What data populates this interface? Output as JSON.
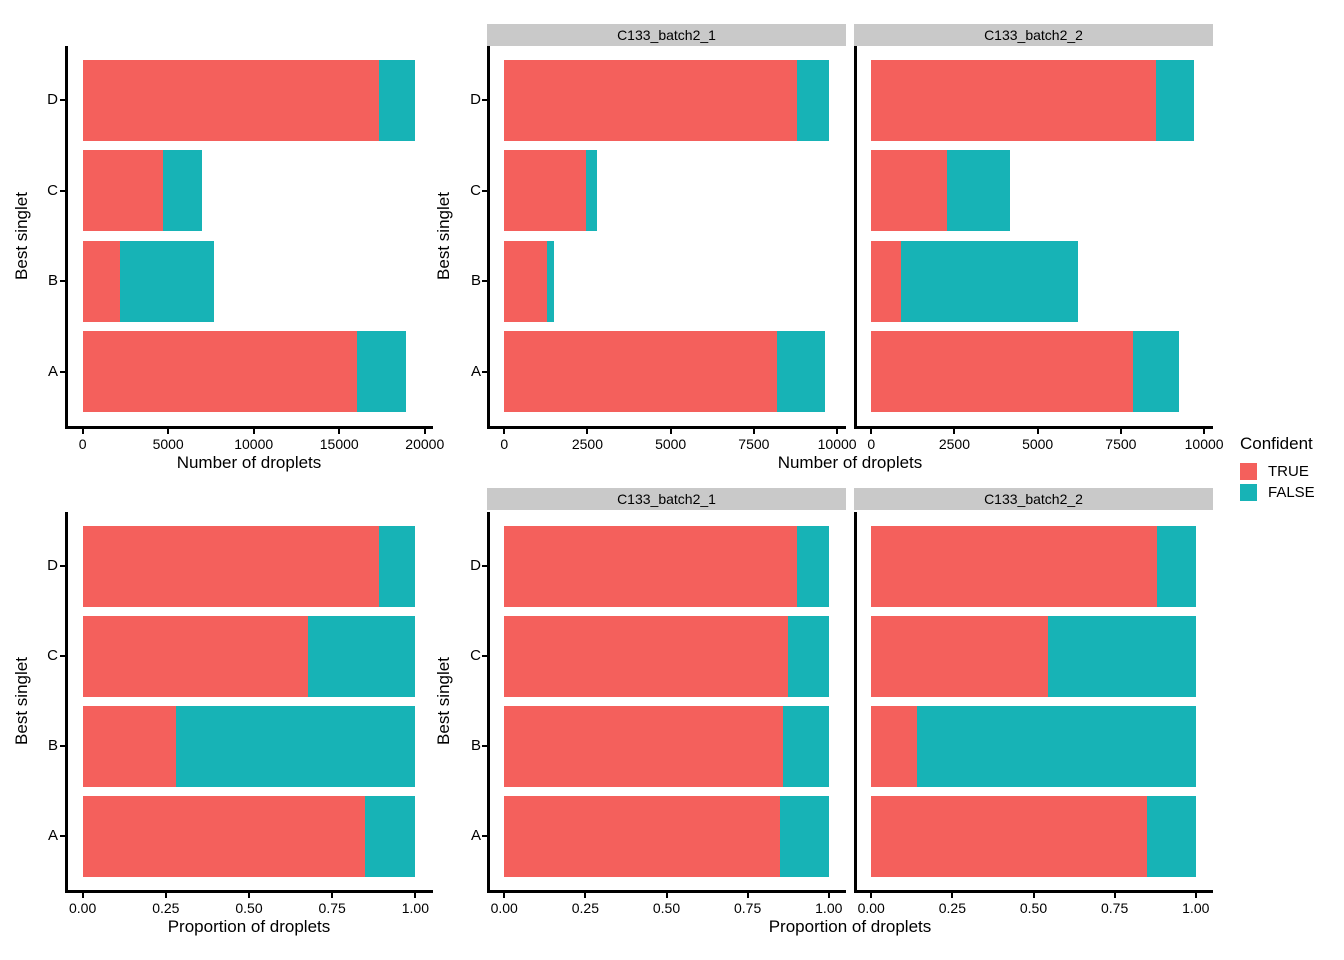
{
  "colors": {
    "TRUE": "#F4605C",
    "FALSE": "#17B3B6",
    "strip_bg": "#C9C9C9",
    "axis": "#000000",
    "text": "#000000"
  },
  "legend": {
    "title": "Confident",
    "entries": [
      {
        "label": "TRUE",
        "color": "#F4605C"
      },
      {
        "label": "FALSE",
        "color": "#17B3B6"
      }
    ]
  },
  "chart_data": [
    {
      "id": "counts_all",
      "type": "bar",
      "orientation": "horizontal",
      "stacked": true,
      "xlabel": "Number of droplets",
      "ylabel": "Best singlet",
      "categories": [
        "A",
        "B",
        "C",
        "D"
      ],
      "xlim": [
        -972.5,
        20422.5
      ],
      "xticks": [
        {
          "value": 0,
          "label": "0"
        },
        {
          "value": 5000,
          "label": "5000"
        },
        {
          "value": 10000,
          "label": "10000"
        },
        {
          "value": 15000,
          "label": "15000"
        },
        {
          "value": 20000,
          "label": "20000"
        }
      ],
      "panels": [
        {
          "strip": null,
          "series": [
            {
              "name": "TRUE",
              "values": [
                16050,
                2170,
                4720,
                17350
              ]
            },
            {
              "name": "FALSE",
              "values": [
                2850,
                5530,
                2240,
                2100
              ]
            }
          ]
        }
      ]
    },
    {
      "id": "counts_facets",
      "type": "bar",
      "orientation": "horizontal",
      "stacked": true,
      "xlabel": "Number of droplets",
      "ylabel": "Best singlet",
      "categories": [
        "A",
        "B",
        "C",
        "D"
      ],
      "xlim": [
        -487.5,
        10237.5
      ],
      "xticks": [
        {
          "value": 0,
          "label": "0"
        },
        {
          "value": 2500,
          "label": "2500"
        },
        {
          "value": 5000,
          "label": "5000"
        },
        {
          "value": 7500,
          "label": "7500"
        },
        {
          "value": 10000,
          "label": "10000"
        }
      ],
      "panels": [
        {
          "strip": "C133_batch2_1",
          "series": [
            {
              "name": "TRUE",
              "values": [
                8200,
                1290,
                2450,
                8800
              ]
            },
            {
              "name": "FALSE",
              "values": [
                1450,
                210,
                350,
                950
              ]
            }
          ]
        },
        {
          "strip": "C133_batch2_2",
          "series": [
            {
              "name": "TRUE",
              "values": [
                7850,
                880,
                2270,
                8550
              ]
            },
            {
              "name": "FALSE",
              "values": [
                1400,
                5320,
                1890,
                1150
              ]
            }
          ]
        }
      ]
    },
    {
      "id": "props_all",
      "type": "bar",
      "orientation": "horizontal",
      "stacked": true,
      "xlabel": "Proportion of droplets",
      "ylabel": "Best singlet",
      "categories": [
        "A",
        "B",
        "C",
        "D"
      ],
      "xlim": [
        -0.05,
        1.05
      ],
      "xticks": [
        {
          "value": 0,
          "label": "0.00"
        },
        {
          "value": 0.25,
          "label": "0.25"
        },
        {
          "value": 0.5,
          "label": "0.50"
        },
        {
          "value": 0.75,
          "label": "0.75"
        },
        {
          "value": 1,
          "label": "1.00"
        }
      ],
      "panels": [
        {
          "strip": null,
          "series": [
            {
              "name": "TRUE",
              "values": [
                0.849,
                0.282,
                0.678,
                0.892
              ]
            },
            {
              "name": "FALSE",
              "values": [
                0.151,
                0.718,
                0.322,
                0.108
              ]
            }
          ]
        }
      ]
    },
    {
      "id": "props_facets",
      "type": "bar",
      "orientation": "horizontal",
      "stacked": true,
      "xlabel": "Proportion of droplets",
      "ylabel": "Best singlet",
      "categories": [
        "A",
        "B",
        "C",
        "D"
      ],
      "xlim": [
        -0.05,
        1.05
      ],
      "xticks": [
        {
          "value": 0,
          "label": "0.00"
        },
        {
          "value": 0.25,
          "label": "0.25"
        },
        {
          "value": 0.5,
          "label": "0.50"
        },
        {
          "value": 0.75,
          "label": "0.75"
        },
        {
          "value": 1,
          "label": "1.00"
        }
      ],
      "panels": [
        {
          "strip": "C133_batch2_1",
          "series": [
            {
              "name": "TRUE",
              "values": [
                0.85,
                0.86,
                0.875,
                0.903
              ]
            },
            {
              "name": "FALSE",
              "values": [
                0.15,
                0.14,
                0.125,
                0.097
              ]
            }
          ]
        },
        {
          "strip": "C133_batch2_2",
          "series": [
            {
              "name": "TRUE",
              "values": [
                0.849,
                0.142,
                0.546,
                0.881
              ]
            },
            {
              "name": "FALSE",
              "values": [
                0.151,
                0.858,
                0.454,
                0.119
              ]
            }
          ]
        }
      ]
    }
  ]
}
